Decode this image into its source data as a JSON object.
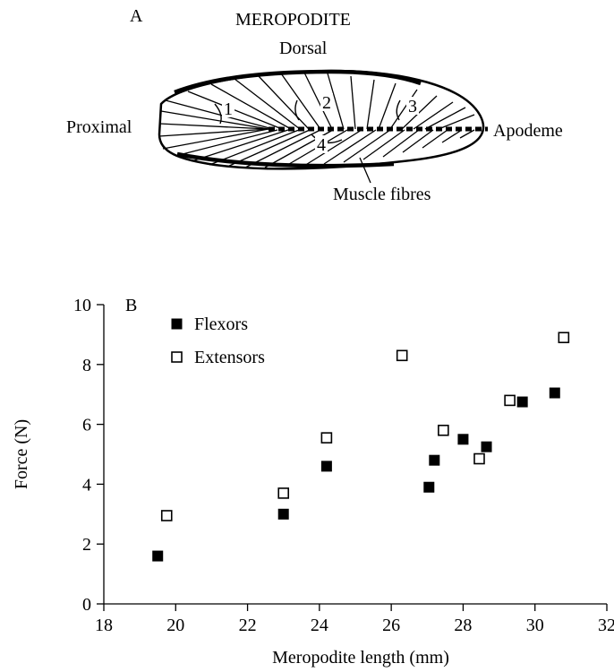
{
  "panel_a": {
    "letter": "A",
    "title": "MEROPODITE",
    "dorsal": "Dorsal",
    "proximal": "Proximal",
    "apodeme": "Apodeme",
    "muscle_fibres": "Muscle fibres",
    "region_labels": [
      "1",
      "2",
      "3",
      "4"
    ]
  },
  "chart_data": {
    "type": "scatter",
    "panel_letter": "B",
    "xlabel": "Meropodite length (mm)",
    "ylabel": "Force (N)",
    "xlim": [
      18,
      32
    ],
    "ylim": [
      0,
      10
    ],
    "x_ticks": [
      "18",
      "20",
      "22",
      "24",
      "26",
      "28",
      "30",
      "32"
    ],
    "y_ticks": [
      "0",
      "2",
      "4",
      "6",
      "8",
      "10"
    ],
    "legend_position": "top-left",
    "grid": false,
    "series": [
      {
        "name": "Flexors",
        "marker": "filled-square",
        "color": "#000000",
        "points": [
          {
            "x": 19.5,
            "y": 1.6
          },
          {
            "x": 23.0,
            "y": 3.0
          },
          {
            "x": 24.2,
            "y": 4.6
          },
          {
            "x": 27.05,
            "y": 3.9
          },
          {
            "x": 27.2,
            "y": 4.8
          },
          {
            "x": 28.0,
            "y": 5.5
          },
          {
            "x": 28.65,
            "y": 5.25
          },
          {
            "x": 29.65,
            "y": 6.75
          },
          {
            "x": 30.55,
            "y": 7.05
          }
        ]
      },
      {
        "name": "Extensors",
        "marker": "open-square",
        "color": "#000000",
        "points": [
          {
            "x": 19.75,
            "y": 2.95
          },
          {
            "x": 23.0,
            "y": 3.7
          },
          {
            "x": 24.2,
            "y": 5.55
          },
          {
            "x": 26.3,
            "y": 8.3
          },
          {
            "x": 27.45,
            "y": 5.8
          },
          {
            "x": 28.45,
            "y": 4.85
          },
          {
            "x": 29.3,
            "y": 6.8
          },
          {
            "x": 30.8,
            "y": 8.9
          }
        ]
      }
    ]
  }
}
